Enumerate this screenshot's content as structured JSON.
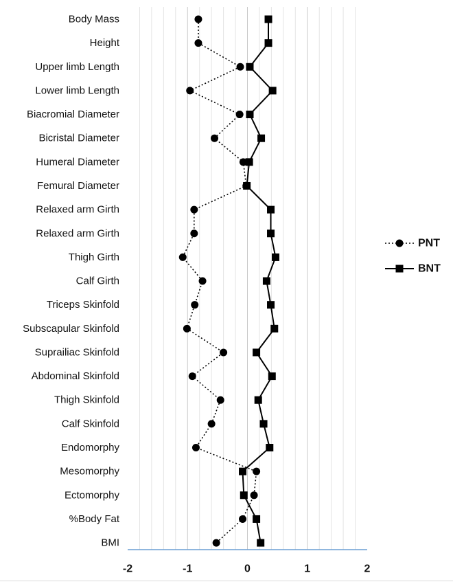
{
  "chart_data": {
    "type": "line",
    "orientation": "horizontal",
    "title": "",
    "xlabel": "",
    "ylabel": "",
    "xlim": [
      -2,
      2
    ],
    "x_ticks": [
      "-2",
      "-1",
      "0",
      "1",
      "2"
    ],
    "x_tick_values": [
      -2,
      -1,
      0,
      1,
      2
    ],
    "grid": "vertical minor gridlines every 0.2",
    "legend_position": "right",
    "categories": [
      "Body Mass",
      "Height",
      "Upper limb Length",
      "Lower limb Length",
      "Biacromial Diameter",
      "Bicristal Diameter",
      "Humeral Diameter",
      "Femural Diameter",
      "Relaxed arm Girth",
      "Relaxed arm Girth",
      "Thigh Girth",
      "Calf Girth",
      "Triceps Skinfold",
      "Subscapular Skinfold",
      "Suprailiac Skinfold",
      "Abdominal Skinfold",
      "Thigh Skinfold",
      "Calf Skinfold",
      "Endomorphy",
      "Mesomorphy",
      "Ectomorphy",
      "%Body Fat",
      "BMI"
    ],
    "series": [
      {
        "name": "PNT",
        "marker": "circle",
        "line": "dotted",
        "color": "#000000",
        "values": [
          -0.82,
          -0.82,
          -0.12,
          -0.96,
          -0.13,
          -0.55,
          -0.07,
          -0.02,
          -0.89,
          -0.89,
          -1.08,
          -0.75,
          -0.88,
          -1.01,
          -0.4,
          -0.92,
          -0.45,
          -0.6,
          -0.86,
          0.15,
          0.11,
          -0.08,
          -0.52
        ]
      },
      {
        "name": "BNT",
        "marker": "square",
        "line": "solid",
        "color": "#000000",
        "values": [
          0.35,
          0.35,
          0.04,
          0.42,
          0.04,
          0.23,
          0.03,
          -0.01,
          0.39,
          0.39,
          0.47,
          0.32,
          0.39,
          0.45,
          0.15,
          0.41,
          0.18,
          0.27,
          0.37,
          -0.08,
          -0.06,
          0.15,
          0.22
        ]
      }
    ]
  }
}
